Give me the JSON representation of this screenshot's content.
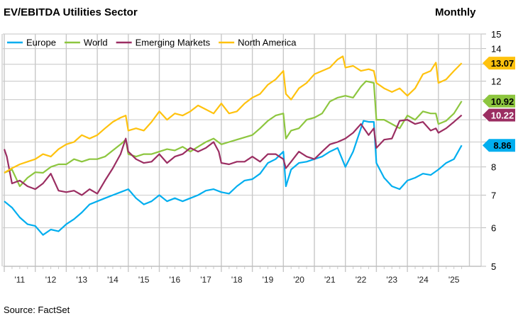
{
  "chart_data": {
    "type": "line",
    "title": "EV/EBITDA Utilities Sector",
    "frequency_label": "Monthly",
    "source": "Source: FactSet",
    "y_scale": "log",
    "ylim": [
      5,
      15
    ],
    "y_ticks": [
      5,
      6,
      7,
      8,
      9,
      10,
      11,
      12,
      13,
      14,
      15
    ],
    "y_tick_labels_visible": [
      "5",
      "6",
      "7",
      "8",
      "12",
      "14",
      "15"
    ],
    "xlim": [
      "2011-01",
      "2025-12"
    ],
    "x_tick_labels": [
      "'11",
      "'12",
      "'13",
      "'14",
      "'15",
      "'16",
      "'17",
      "'18",
      "'19",
      "'20",
      "'21",
      "'22",
      "'23",
      "'24",
      "'25"
    ],
    "grid": true,
    "legend_placement": "top-left",
    "series": [
      {
        "name": "Europe",
        "color": "#00AEEF",
        "last_value": "8.86",
        "label_text_color": "#000000",
        "points": [
          [
            "2011-01",
            6.8
          ],
          [
            "2011-04",
            6.6
          ],
          [
            "2011-07",
            6.3
          ],
          [
            "2011-10",
            6.1
          ],
          [
            "2012-01",
            6.05
          ],
          [
            "2012-04",
            5.8
          ],
          [
            "2012-07",
            5.95
          ],
          [
            "2012-10",
            5.9
          ],
          [
            "2013-01",
            6.1
          ],
          [
            "2013-04",
            6.25
          ],
          [
            "2013-07",
            6.45
          ],
          [
            "2013-10",
            6.7
          ],
          [
            "2014-01",
            6.8
          ],
          [
            "2014-04",
            6.9
          ],
          [
            "2014-07",
            7.0
          ],
          [
            "2014-10",
            7.1
          ],
          [
            "2015-01",
            7.2
          ],
          [
            "2015-04",
            6.9
          ],
          [
            "2015-07",
            6.7
          ],
          [
            "2015-10",
            6.8
          ],
          [
            "2016-01",
            7.0
          ],
          [
            "2016-04",
            6.8
          ],
          [
            "2016-07",
            6.9
          ],
          [
            "2016-10",
            6.8
          ],
          [
            "2017-01",
            6.9
          ],
          [
            "2017-04",
            7.0
          ],
          [
            "2017-07",
            7.15
          ],
          [
            "2017-10",
            7.2
          ],
          [
            "2018-01",
            7.1
          ],
          [
            "2018-04",
            7.05
          ],
          [
            "2018-07",
            7.3
          ],
          [
            "2018-10",
            7.5
          ],
          [
            "2019-01",
            7.55
          ],
          [
            "2019-04",
            7.75
          ],
          [
            "2019-07",
            8.15
          ],
          [
            "2019-10",
            8.3
          ],
          [
            "2020-01",
            8.6
          ],
          [
            "2020-02",
            7.3
          ],
          [
            "2020-04",
            7.9
          ],
          [
            "2020-07",
            8.15
          ],
          [
            "2020-10",
            8.2
          ],
          [
            "2021-01",
            8.3
          ],
          [
            "2021-04",
            8.4
          ],
          [
            "2021-07",
            8.6
          ],
          [
            "2021-10",
            8.75
          ],
          [
            "2022-01",
            8.0
          ],
          [
            "2022-04",
            8.6
          ],
          [
            "2022-07",
            9.6
          ],
          [
            "2022-08",
            9.95
          ],
          [
            "2022-10",
            9.9
          ],
          [
            "2022-12",
            9.9
          ],
          [
            "2023-01",
            8.15
          ],
          [
            "2023-04",
            7.6
          ],
          [
            "2023-07",
            7.3
          ],
          [
            "2023-10",
            7.2
          ],
          [
            "2024-01",
            7.5
          ],
          [
            "2024-04",
            7.6
          ],
          [
            "2024-07",
            7.75
          ],
          [
            "2024-10",
            7.7
          ],
          [
            "2025-01",
            7.9
          ],
          [
            "2025-04",
            8.15
          ],
          [
            "2025-07",
            8.3
          ],
          [
            "2025-10",
            8.86
          ]
        ]
      },
      {
        "name": "World",
        "color": "#8DC63F",
        "last_value": "10.92",
        "label_text_color": "#000000",
        "points": [
          [
            "2011-01",
            7.78
          ],
          [
            "2011-04",
            7.9
          ],
          [
            "2011-07",
            7.3
          ],
          [
            "2011-10",
            7.6
          ],
          [
            "2012-01",
            7.8
          ],
          [
            "2012-04",
            7.78
          ],
          [
            "2012-07",
            8.0
          ],
          [
            "2012-10",
            8.1
          ],
          [
            "2013-01",
            8.1
          ],
          [
            "2013-04",
            8.3
          ],
          [
            "2013-07",
            8.2
          ],
          [
            "2013-10",
            8.3
          ],
          [
            "2014-01",
            8.3
          ],
          [
            "2014-04",
            8.4
          ],
          [
            "2014-07",
            8.65
          ],
          [
            "2014-10",
            8.9
          ],
          [
            "2014-12",
            9.1
          ],
          [
            "2015-01",
            8.5
          ],
          [
            "2015-04",
            8.4
          ],
          [
            "2015-07",
            8.5
          ],
          [
            "2015-10",
            8.5
          ],
          [
            "2016-01",
            8.6
          ],
          [
            "2016-04",
            8.7
          ],
          [
            "2016-07",
            8.65
          ],
          [
            "2016-10",
            8.8
          ],
          [
            "2017-01",
            8.6
          ],
          [
            "2017-04",
            8.8
          ],
          [
            "2017-07",
            9.0
          ],
          [
            "2017-10",
            9.15
          ],
          [
            "2018-01",
            8.9
          ],
          [
            "2018-04",
            9.0
          ],
          [
            "2018-07",
            9.1
          ],
          [
            "2018-10",
            9.2
          ],
          [
            "2019-01",
            9.3
          ],
          [
            "2019-04",
            9.6
          ],
          [
            "2019-07",
            9.95
          ],
          [
            "2019-10",
            10.2
          ],
          [
            "2020-01",
            10.3
          ],
          [
            "2020-02",
            9.15
          ],
          [
            "2020-04",
            9.5
          ],
          [
            "2020-07",
            9.6
          ],
          [
            "2020-10",
            10.0
          ],
          [
            "2021-01",
            10.1
          ],
          [
            "2021-04",
            10.3
          ],
          [
            "2021-07",
            10.9
          ],
          [
            "2021-10",
            11.1
          ],
          [
            "2022-01",
            11.2
          ],
          [
            "2022-04",
            11.1
          ],
          [
            "2022-07",
            11.7
          ],
          [
            "2022-09",
            12.0
          ],
          [
            "2022-12",
            11.9
          ],
          [
            "2023-01",
            10.0
          ],
          [
            "2023-04",
            10.0
          ],
          [
            "2023-07",
            9.8
          ],
          [
            "2023-10",
            9.6
          ],
          [
            "2024-01",
            10.2
          ],
          [
            "2024-04",
            10.0
          ],
          [
            "2024-07",
            10.4
          ],
          [
            "2024-10",
            10.3
          ],
          [
            "2024-12",
            10.3
          ],
          [
            "2025-01",
            9.8
          ],
          [
            "2025-04",
            9.95
          ],
          [
            "2025-07",
            10.3
          ],
          [
            "2025-10",
            10.92
          ]
        ]
      },
      {
        "name": "Emerging Markets",
        "color": "#9B2E62",
        "last_value": "10.22",
        "label_text_color": "#FFFFFF",
        "points": [
          [
            "2011-01",
            8.7
          ],
          [
            "2011-02",
            8.4
          ],
          [
            "2011-04",
            7.4
          ],
          [
            "2011-07",
            7.5
          ],
          [
            "2011-10",
            7.3
          ],
          [
            "2012-01",
            7.2
          ],
          [
            "2012-04",
            7.4
          ],
          [
            "2012-07",
            7.75
          ],
          [
            "2012-10",
            7.15
          ],
          [
            "2013-01",
            7.1
          ],
          [
            "2013-04",
            7.15
          ],
          [
            "2013-07",
            7.0
          ],
          [
            "2013-10",
            7.2
          ],
          [
            "2014-01",
            7.05
          ],
          [
            "2014-04",
            7.5
          ],
          [
            "2014-07",
            7.95
          ],
          [
            "2014-10",
            8.5
          ],
          [
            "2014-12",
            9.15
          ],
          [
            "2015-01",
            8.6
          ],
          [
            "2015-04",
            8.3
          ],
          [
            "2015-07",
            8.15
          ],
          [
            "2015-10",
            8.2
          ],
          [
            "2016-01",
            8.5
          ],
          [
            "2016-04",
            8.15
          ],
          [
            "2016-07",
            8.4
          ],
          [
            "2016-10",
            8.5
          ],
          [
            "2017-01",
            8.75
          ],
          [
            "2017-04",
            8.6
          ],
          [
            "2017-07",
            8.75
          ],
          [
            "2017-10",
            9.0
          ],
          [
            "2017-12",
            8.6
          ],
          [
            "2018-01",
            8.15
          ],
          [
            "2018-04",
            8.1
          ],
          [
            "2018-07",
            8.2
          ],
          [
            "2018-10",
            8.2
          ],
          [
            "2019-01",
            8.4
          ],
          [
            "2019-04",
            8.2
          ],
          [
            "2019-07",
            8.5
          ],
          [
            "2019-10",
            8.5
          ],
          [
            "2020-01",
            8.3
          ],
          [
            "2020-02",
            7.95
          ],
          [
            "2020-04",
            8.2
          ],
          [
            "2020-07",
            8.6
          ],
          [
            "2020-10",
            8.4
          ],
          [
            "2021-01",
            8.3
          ],
          [
            "2021-04",
            8.6
          ],
          [
            "2021-07",
            8.9
          ],
          [
            "2021-10",
            9.0
          ],
          [
            "2022-01",
            9.15
          ],
          [
            "2022-04",
            9.4
          ],
          [
            "2022-07",
            9.8
          ],
          [
            "2022-10",
            9.3
          ],
          [
            "2022-12",
            9.6
          ],
          [
            "2023-01",
            8.75
          ],
          [
            "2023-04",
            9.1
          ],
          [
            "2023-07",
            9.15
          ],
          [
            "2023-10",
            9.95
          ],
          [
            "2024-01",
            10.0
          ],
          [
            "2024-04",
            9.8
          ],
          [
            "2024-07",
            9.9
          ],
          [
            "2024-10",
            9.5
          ],
          [
            "2024-12",
            9.6
          ],
          [
            "2025-01",
            9.4
          ],
          [
            "2025-04",
            9.6
          ],
          [
            "2025-07",
            9.9
          ],
          [
            "2025-10",
            10.22
          ]
        ]
      },
      {
        "name": "North America",
        "color": "#FFC20E",
        "last_value": "13.07",
        "label_text_color": "#000000",
        "points": [
          [
            "2011-01",
            7.78
          ],
          [
            "2011-04",
            7.95
          ],
          [
            "2011-07",
            8.1
          ],
          [
            "2011-10",
            8.2
          ],
          [
            "2012-01",
            8.3
          ],
          [
            "2012-04",
            8.5
          ],
          [
            "2012-07",
            8.4
          ],
          [
            "2012-10",
            8.7
          ],
          [
            "2013-01",
            8.9
          ],
          [
            "2013-04",
            9.0
          ],
          [
            "2013-07",
            9.3
          ],
          [
            "2013-10",
            9.15
          ],
          [
            "2014-01",
            9.3
          ],
          [
            "2014-04",
            9.6
          ],
          [
            "2014-07",
            9.9
          ],
          [
            "2014-10",
            10.1
          ],
          [
            "2014-12",
            10.2
          ],
          [
            "2015-01",
            9.5
          ],
          [
            "2015-04",
            9.6
          ],
          [
            "2015-07",
            9.5
          ],
          [
            "2015-10",
            9.9
          ],
          [
            "2016-01",
            10.4
          ],
          [
            "2016-04",
            10.0
          ],
          [
            "2016-07",
            10.3
          ],
          [
            "2016-10",
            10.2
          ],
          [
            "2017-01",
            10.4
          ],
          [
            "2017-04",
            10.7
          ],
          [
            "2017-07",
            10.5
          ],
          [
            "2017-10",
            10.3
          ],
          [
            "2018-01",
            10.8
          ],
          [
            "2018-04",
            10.3
          ],
          [
            "2018-07",
            10.4
          ],
          [
            "2018-10",
            10.8
          ],
          [
            "2019-01",
            11.1
          ],
          [
            "2019-04",
            11.3
          ],
          [
            "2019-07",
            11.8
          ],
          [
            "2019-10",
            12.1
          ],
          [
            "2020-01",
            12.6
          ],
          [
            "2020-02",
            11.3
          ],
          [
            "2020-04",
            11.0
          ],
          [
            "2020-07",
            11.6
          ],
          [
            "2020-10",
            11.9
          ],
          [
            "2021-01",
            12.4
          ],
          [
            "2021-04",
            12.6
          ],
          [
            "2021-07",
            12.8
          ],
          [
            "2021-10",
            13.3
          ],
          [
            "2021-12",
            13.5
          ],
          [
            "2022-01",
            12.8
          ],
          [
            "2022-04",
            12.9
          ],
          [
            "2022-07",
            12.6
          ],
          [
            "2022-10",
            12.7
          ],
          [
            "2022-12",
            12.6
          ],
          [
            "2023-01",
            11.9
          ],
          [
            "2023-04",
            11.6
          ],
          [
            "2023-07",
            11.4
          ],
          [
            "2023-10",
            11.6
          ],
          [
            "2024-01",
            11.2
          ],
          [
            "2024-04",
            11.6
          ],
          [
            "2024-07",
            12.4
          ],
          [
            "2024-10",
            12.6
          ],
          [
            "2024-12",
            13.1
          ],
          [
            "2025-01",
            11.9
          ],
          [
            "2025-04",
            12.1
          ],
          [
            "2025-07",
            12.6
          ],
          [
            "2025-10",
            13.07
          ]
        ]
      }
    ]
  }
}
